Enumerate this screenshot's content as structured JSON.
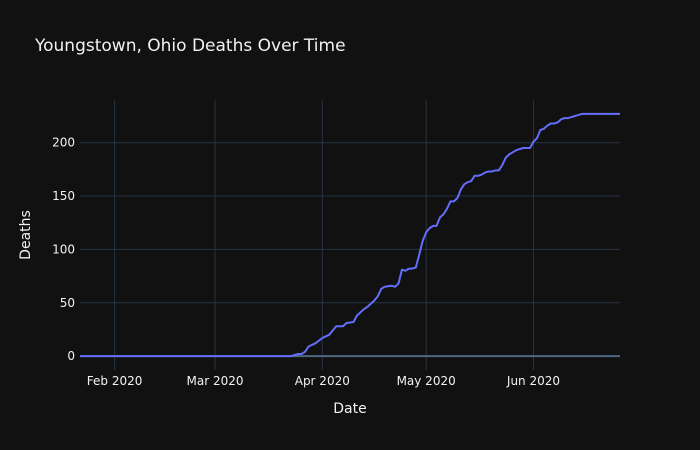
{
  "chart_data": {
    "type": "line",
    "title": "Youngstown, Ohio Deaths Over Time",
    "xlabel": "Date",
    "ylabel": "Deaths",
    "x_range": [
      "2020-01-22",
      "2020-06-26"
    ],
    "ylim": [
      -13,
      240
    ],
    "x_ticks": [
      {
        "label": "Feb 2020",
        "date": "2020-02-01"
      },
      {
        "label": "Mar 2020",
        "date": "2020-03-01"
      },
      {
        "label": "Apr 2020",
        "date": "2020-04-01"
      },
      {
        "label": "May 2020",
        "date": "2020-05-01"
      },
      {
        "label": "Jun 2020",
        "date": "2020-06-01"
      }
    ],
    "y_ticks": [
      0,
      50,
      100,
      150,
      200
    ],
    "grid": true,
    "colors": {
      "background": "#111111",
      "grid": "#283442",
      "zero_line": "#506784",
      "line": "#636efa",
      "text": "#f2f2f2"
    },
    "series": [
      {
        "x": [
          "2020-01-22",
          "2020-03-23",
          "2020-03-25",
          "2020-03-26",
          "2020-03-27",
          "2020-03-28",
          "2020-03-30",
          "2020-04-01",
          "2020-04-03",
          "2020-04-05",
          "2020-04-07",
          "2020-04-08",
          "2020-04-10",
          "2020-04-11",
          "2020-04-12",
          "2020-04-13",
          "2020-04-14",
          "2020-04-16",
          "2020-04-17",
          "2020-04-18",
          "2020-04-19",
          "2020-04-21",
          "2020-04-22",
          "2020-04-23",
          "2020-04-24",
          "2020-04-25",
          "2020-04-26",
          "2020-04-27",
          "2020-04-28",
          "2020-04-29",
          "2020-04-30",
          "2020-05-01",
          "2020-05-02",
          "2020-05-03",
          "2020-05-04",
          "2020-05-05",
          "2020-05-06",
          "2020-05-07",
          "2020-05-08",
          "2020-05-09",
          "2020-05-10",
          "2020-05-11",
          "2020-05-12",
          "2020-05-13",
          "2020-05-14",
          "2020-05-15",
          "2020-05-16",
          "2020-05-17",
          "2020-05-18",
          "2020-05-19",
          "2020-05-20",
          "2020-05-21",
          "2020-05-22",
          "2020-05-23",
          "2020-05-24",
          "2020-05-25",
          "2020-05-26",
          "2020-05-27",
          "2020-05-28",
          "2020-05-29",
          "2020-05-30",
          "2020-05-31",
          "2020-06-01",
          "2020-06-02",
          "2020-06-03",
          "2020-06-04",
          "2020-06-05",
          "2020-06-06",
          "2020-06-07",
          "2020-06-08",
          "2020-06-09",
          "2020-06-10",
          "2020-06-11",
          "2020-06-12",
          "2020-06-13",
          "2020-06-14",
          "2020-06-15",
          "2020-06-16",
          "2020-06-17",
          "2020-06-18",
          "2020-06-19",
          "2020-06-20",
          "2020-06-21",
          "2020-06-22",
          "2020-06-23",
          "2020-06-24",
          "2020-06-25",
          "2020-06-26"
        ],
        "y": [
          0,
          0,
          2,
          2,
          4,
          9,
          12,
          17,
          20,
          28,
          28,
          31,
          32,
          38,
          41,
          44,
          46,
          52,
          56,
          63,
          65,
          66,
          65,
          68,
          81,
          80,
          82,
          82,
          83,
          95,
          108,
          116,
          120,
          122,
          122,
          130,
          133,
          138,
          145,
          145,
          148,
          156,
          161,
          163,
          164,
          169,
          169,
          170,
          172,
          173,
          173,
          174,
          174,
          179,
          186,
          189,
          191,
          193,
          194,
          195,
          195,
          195,
          201,
          204,
          212,
          213,
          216,
          218,
          218,
          219,
          222,
          223,
          223,
          224,
          225,
          226,
          227,
          227,
          227,
          227,
          227,
          227,
          227,
          227,
          227,
          227,
          227,
          227
        ]
      }
    ]
  }
}
